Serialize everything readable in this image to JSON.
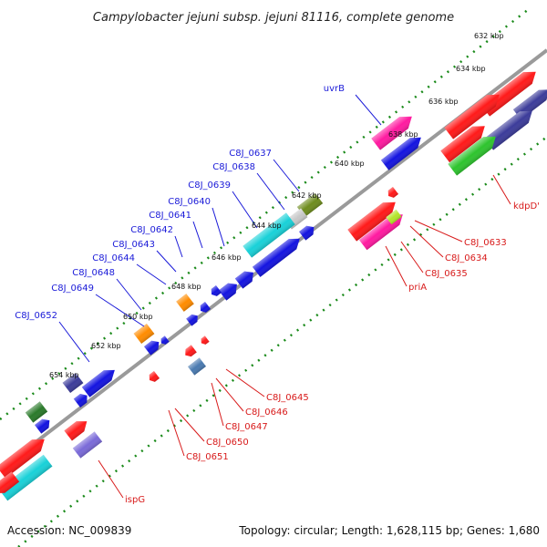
{
  "title": "Campylobacter jejuni subsp. jejuni 81116, complete genome",
  "footer": {
    "accession": "Accession: NC_009839",
    "summary": "Topology: circular; Length: 1,628,115 bp; Genes: 1,680"
  },
  "colors": {
    "backbone": "#8c8c8c",
    "ruler_dots": "#1a8a1a",
    "plus_label": "#1a1ad8",
    "minus_label": "#d81a1a",
    "red": "#ff1a1a",
    "blue": "#1414e0",
    "cyan": "#19d1d8",
    "magenta": "#ff1aa0",
    "green": "#2ec42e",
    "orange": "#ff8c00",
    "navy": "#3c3c9a",
    "purple": "#7a6ad8",
    "olive": "#6e8c1e",
    "steel": "#4a7ab0",
    "lime": "#b4e62a",
    "grey": "#c8c8c8",
    "darkgreen": "#2a7a2a"
  },
  "ticks": [
    "632 kbp",
    "634 kbp",
    "636 kbp",
    "638 kbp",
    "640 kbp",
    "642 kbp",
    "644 kbp",
    "646 kbp",
    "648 kbp",
    "650 kbp",
    "652 kbp",
    "654 kbp"
  ],
  "plus_labels": [
    "uvrB",
    "C8J_0637",
    "C8J_0638",
    "C8J_0639",
    "C8J_0640",
    "C8J_0641",
    "C8J_0642",
    "C8J_0643",
    "C8J_0644",
    "C8J_0648",
    "C8J_0649",
    "C8J_0652"
  ],
  "minus_labels": [
    "kdpD'",
    "C8J_0633",
    "C8J_0634",
    "C8J_0635",
    "priA",
    "C8J_0645",
    "C8J_0646",
    "C8J_0647",
    "C8J_0650",
    "C8J_0651",
    "ispG"
  ]
}
